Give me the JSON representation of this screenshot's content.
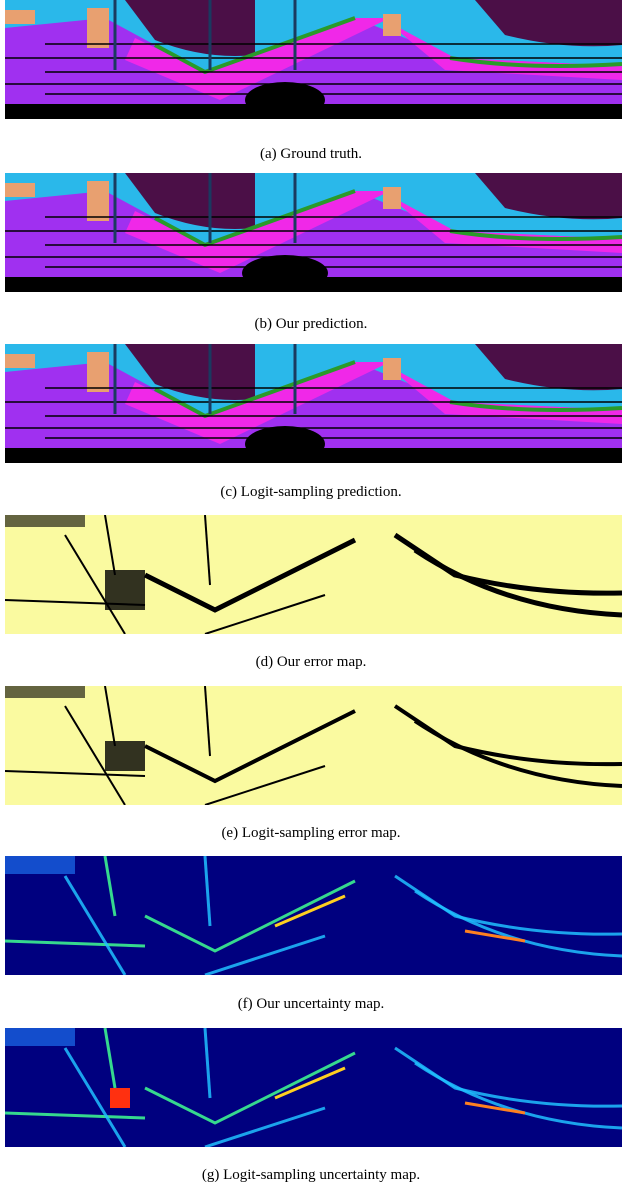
{
  "figure": {
    "panels": [
      {
        "caption": "(a) Ground truth."
      },
      {
        "caption": "(b) Our prediction."
      },
      {
        "caption": "(c) Logit-sampling prediction."
      },
      {
        "caption": "(d) Our error map."
      },
      {
        "caption": "(e) Logit-sampling error map."
      },
      {
        "caption": "(f) Our uncertainty map."
      },
      {
        "caption": "(g) Logit-sampling uncertainty map."
      }
    ]
  }
}
